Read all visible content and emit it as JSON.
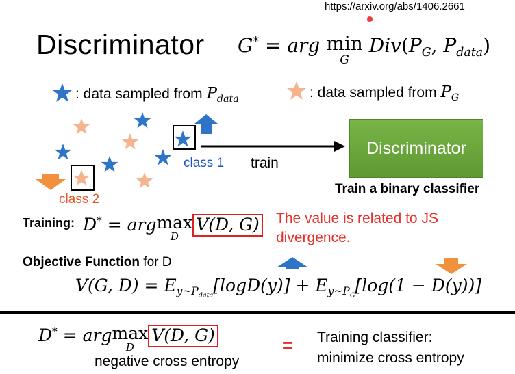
{
  "url": "https://arxiv.org/abs/1406.2661",
  "title": "Discriminator",
  "title_eq": {
    "lhs": "G",
    "sup": "*",
    "eq": "=",
    "arg": "arg",
    "op": "min",
    "op_under": "G",
    "div": "Div",
    "open": "(",
    "p1": "P",
    "p1_sub": "G",
    "comma": ",",
    "p2": "P",
    "p2_sub": "data",
    "close": ")"
  },
  "legend": {
    "text": ": data sampled from",
    "p": "P",
    "data_sub": "data",
    "g_sub": "G",
    "star_icon": "star-icon",
    "colors": {
      "blue_star": "#2e74c8",
      "orange_star": "#f6b48e"
    }
  },
  "labels": {
    "class1": "class 1",
    "class2": "class 2",
    "train": "train",
    "discriminator_box": "Discriminator",
    "binary": "Train a binary classifier"
  },
  "training": {
    "label": "Training:",
    "d": "D",
    "sup": "*",
    "eq": "=",
    "arg": "arg",
    "op": "max",
    "op_under": "D",
    "boxed": "V(D, G)"
  },
  "js_note": "The value is related to JS\ndivergence.",
  "objective": {
    "bold": "Objective Function",
    "rest": " for D"
  },
  "v_eq": {
    "lhs": "V(G, D) = E",
    "sub1": "y~P",
    "sub1b": "data",
    "mid1": "[logD(y)] + E",
    "sub2": "y~P",
    "sub2b": "G",
    "mid2": "[log(1 − D(y))]"
  },
  "bottom": {
    "d": "D",
    "sup": "*",
    "eq": "=",
    "arg": "arg",
    "op": "max",
    "op_under": "D",
    "boxed": "V(D, G)",
    "neg_ce": "negative cross entropy",
    "equals": "=",
    "line1": "Training classifier:",
    "line2": "minimize cross entropy"
  },
  "colors": {
    "accent_red": "#e02020",
    "box_green": "#6aa23a",
    "arrow_blue": "#2e74c8",
    "arrow_orange": "#f2913d"
  }
}
